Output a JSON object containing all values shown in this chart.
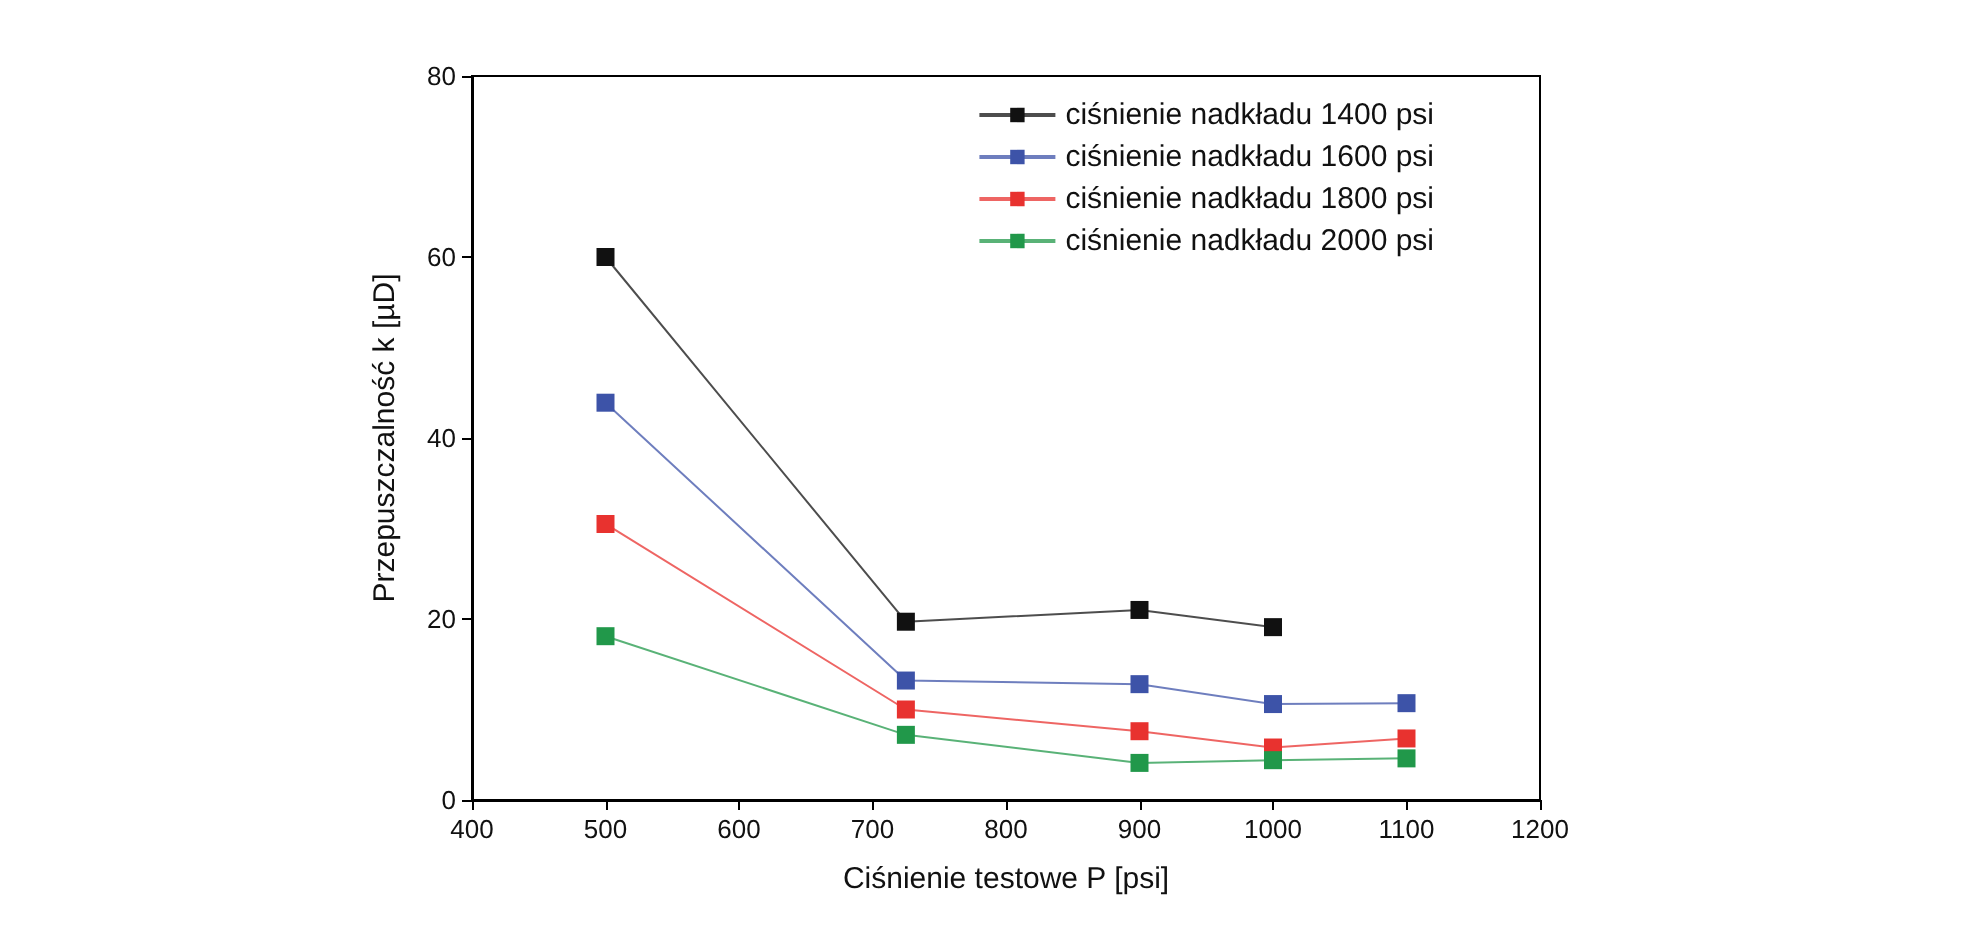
{
  "chart_data": {
    "type": "line",
    "xlabel": "Ciśnienie testowe P [psi]",
    "ylabel": "Przepuszczalność k [µD]",
    "x": [
      500,
      725,
      900,
      1000,
      1100
    ],
    "series": [
      {
        "name": "ciśnienie nadkładu 1400 psi",
        "color": "#111111",
        "values": [
          60,
          19.7,
          21.0,
          19.1,
          null
        ]
      },
      {
        "name": "ciśnienie nadkładu 1600 psi",
        "color": "#3d53a8",
        "values": [
          43.9,
          13.2,
          12.8,
          10.6,
          10.7
        ]
      },
      {
        "name": "ciśnienie nadkładu 1800 psi",
        "color": "#e8322f",
        "values": [
          30.5,
          10.0,
          7.6,
          5.8,
          6.8
        ]
      },
      {
        "name": "ciśnienie nadkładu 2000 psi",
        "color": "#21984a",
        "values": [
          18.1,
          7.2,
          4.1,
          4.4,
          4.6
        ]
      }
    ],
    "xlim": [
      400,
      1200
    ],
    "xticks": [
      400,
      500,
      600,
      700,
      800,
      900,
      1000,
      1100,
      1200
    ],
    "ylim": [
      0,
      80
    ],
    "yticks": [
      0,
      20,
      40,
      60,
      80
    ],
    "legend": "top right",
    "marker": "square",
    "grid": false
  }
}
